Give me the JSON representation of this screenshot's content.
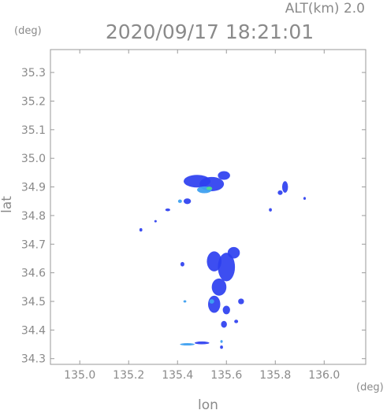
{
  "chart_data": {
    "type": "heatmap",
    "title": "2020/09/17 18:21:01",
    "subtitle": "ALT(km) 2.0",
    "xlabel": "lon",
    "ylabel": "lat",
    "x_unit": "(deg)",
    "y_unit": "(deg)",
    "xlim": [
      134.88,
      136.17
    ],
    "ylim": [
      34.28,
      35.38
    ],
    "xticks": [
      135.0,
      135.2,
      135.4,
      135.6,
      135.8,
      136.0
    ],
    "xtick_labels": [
      "135.0",
      "135.2",
      "135.4",
      "135.6",
      "135.8",
      "136.0"
    ],
    "yticks": [
      34.3,
      34.4,
      34.5,
      34.6,
      34.7,
      34.8,
      34.9,
      35.0,
      35.1,
      35.2,
      35.3
    ],
    "ytick_labels": [
      "34.3",
      "34.4",
      "34.5",
      "34.6",
      "34.7",
      "34.8",
      "34.9",
      "35.0",
      "35.1",
      "35.2",
      "35.3"
    ],
    "grid": false,
    "colors": {
      "low": "#2d3ff0",
      "mid": "#3ea0f0",
      "high": "#4be08a"
    },
    "echo_cells": [
      {
        "lon": 135.48,
        "lat": 34.92,
        "r_lon": 0.055,
        "r_lat": 0.022,
        "level": "low"
      },
      {
        "lon": 135.54,
        "lat": 34.91,
        "r_lon": 0.05,
        "r_lat": 0.025,
        "level": "low"
      },
      {
        "lon": 135.59,
        "lat": 34.94,
        "r_lon": 0.025,
        "r_lat": 0.015,
        "level": "low"
      },
      {
        "lon": 135.51,
        "lat": 34.89,
        "r_lon": 0.03,
        "r_lat": 0.012,
        "level": "mid"
      },
      {
        "lon": 135.53,
        "lat": 34.895,
        "r_lon": 0.012,
        "r_lat": 0.006,
        "level": "high"
      },
      {
        "lon": 135.44,
        "lat": 34.85,
        "r_lon": 0.015,
        "r_lat": 0.01,
        "level": "low"
      },
      {
        "lon": 135.41,
        "lat": 34.85,
        "r_lon": 0.008,
        "r_lat": 0.006,
        "level": "mid"
      },
      {
        "lon": 135.36,
        "lat": 34.82,
        "r_lon": 0.01,
        "r_lat": 0.005,
        "level": "low"
      },
      {
        "lon": 135.84,
        "lat": 34.9,
        "r_lon": 0.012,
        "r_lat": 0.02,
        "level": "low"
      },
      {
        "lon": 135.82,
        "lat": 34.88,
        "r_lon": 0.01,
        "r_lat": 0.008,
        "level": "low"
      },
      {
        "lon": 135.92,
        "lat": 34.86,
        "r_lon": 0.005,
        "r_lat": 0.005,
        "level": "low"
      },
      {
        "lon": 135.78,
        "lat": 34.82,
        "r_lon": 0.006,
        "r_lat": 0.006,
        "level": "low"
      },
      {
        "lon": 135.25,
        "lat": 34.75,
        "r_lon": 0.006,
        "r_lat": 0.006,
        "level": "low"
      },
      {
        "lon": 135.31,
        "lat": 34.78,
        "r_lon": 0.005,
        "r_lat": 0.004,
        "level": "low"
      },
      {
        "lon": 135.55,
        "lat": 34.64,
        "r_lon": 0.03,
        "r_lat": 0.035,
        "level": "low"
      },
      {
        "lon": 135.6,
        "lat": 34.62,
        "r_lon": 0.035,
        "r_lat": 0.05,
        "level": "low"
      },
      {
        "lon": 135.63,
        "lat": 34.67,
        "r_lon": 0.025,
        "r_lat": 0.02,
        "level": "low"
      },
      {
        "lon": 135.57,
        "lat": 34.55,
        "r_lon": 0.03,
        "r_lat": 0.03,
        "level": "low"
      },
      {
        "lon": 135.55,
        "lat": 34.49,
        "r_lon": 0.025,
        "r_lat": 0.03,
        "level": "low"
      },
      {
        "lon": 135.54,
        "lat": 34.5,
        "r_lon": 0.01,
        "r_lat": 0.008,
        "level": "mid"
      },
      {
        "lon": 135.6,
        "lat": 34.47,
        "r_lon": 0.015,
        "r_lat": 0.015,
        "level": "low"
      },
      {
        "lon": 135.66,
        "lat": 34.5,
        "r_lon": 0.012,
        "r_lat": 0.01,
        "level": "low"
      },
      {
        "lon": 135.59,
        "lat": 34.42,
        "r_lon": 0.012,
        "r_lat": 0.012,
        "level": "low"
      },
      {
        "lon": 135.64,
        "lat": 34.43,
        "r_lon": 0.008,
        "r_lat": 0.006,
        "level": "low"
      },
      {
        "lon": 135.42,
        "lat": 34.63,
        "r_lon": 0.008,
        "r_lat": 0.008,
        "level": "low"
      },
      {
        "lon": 135.43,
        "lat": 34.5,
        "r_lon": 0.006,
        "r_lat": 0.004,
        "level": "mid"
      },
      {
        "lon": 135.44,
        "lat": 34.35,
        "r_lon": 0.03,
        "r_lat": 0.004,
        "level": "mid"
      },
      {
        "lon": 135.5,
        "lat": 34.355,
        "r_lon": 0.03,
        "r_lat": 0.005,
        "level": "low"
      },
      {
        "lon": 135.58,
        "lat": 34.34,
        "r_lon": 0.006,
        "r_lat": 0.006,
        "level": "low"
      },
      {
        "lon": 135.58,
        "lat": 34.36,
        "r_lon": 0.005,
        "r_lat": 0.005,
        "level": "mid"
      }
    ]
  }
}
